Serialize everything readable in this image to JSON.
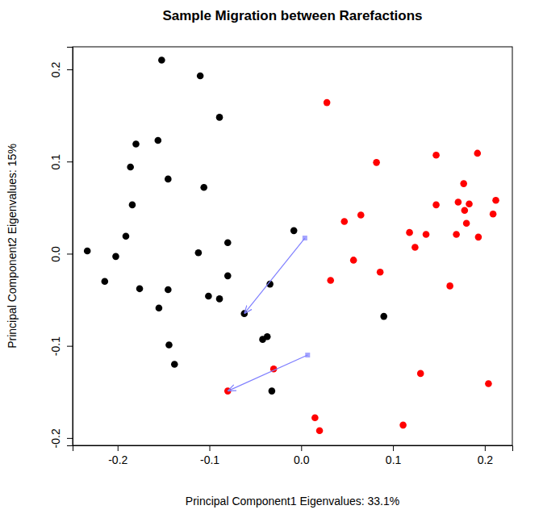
{
  "chart_data": {
    "type": "scatter",
    "title": "Sample Migration between Rarefactions",
    "x_label": "Principal Component1 Eigenvalues: 33.1%",
    "y_label": "Principal Component2 Eigenvalues: 15%",
    "xlim": [
      -0.249,
      0.23
    ],
    "ylim": [
      -0.208,
      0.2245
    ],
    "xticks": [
      -0.2,
      -0.1,
      {
        "value": 0,
        "label": "0.0"
      },
      0.1,
      0.2
    ],
    "yticks": [
      -0.2,
      -0.1,
      {
        "value": 0,
        "label": "0.0"
      },
      0.1,
      0.2
    ],
    "series": [
      {
        "color": "#000000",
        "marker": "circle",
        "x": [
          -0.152,
          -0.11,
          -0.089,
          -0.156,
          -0.18,
          -0.186,
          -0.145,
          -0.106,
          -0.184,
          -0.191,
          -0.233,
          -0.202,
          -0.214,
          -0.176,
          -0.145,
          -0.155,
          -0.112,
          -0.101,
          -0.089,
          -0.08,
          -0.08,
          -0.008,
          -0.034,
          -0.062,
          -0.144,
          -0.138,
          -0.042,
          -0.037,
          -0.032,
          0.09
        ],
        "values": [
          0.21,
          0.193,
          0.148,
          0.123,
          0.119,
          0.094,
          0.081,
          0.072,
          0.053,
          0.019,
          0.003,
          -0.003,
          -0.03,
          -0.038,
          -0.039,
          -0.059,
          0.001,
          -0.046,
          -0.049,
          0.012,
          -0.024,
          0.025,
          -0.033,
          -0.065,
          -0.099,
          -0.12,
          -0.093,
          -0.09,
          -0.149,
          -0.068
        ]
      },
      {
        "color": "#ff0000",
        "marker": "circle",
        "x": [
          0.028,
          0.082,
          0.147,
          0.192,
          0.047,
          0.065,
          0.118,
          0.136,
          0.124,
          0.057,
          0.032,
          0.086,
          0.147,
          0.171,
          0.177,
          0.183,
          0.178,
          0.18,
          0.169,
          0.193,
          0.209,
          0.212,
          0.162,
          0.204,
          0.13,
          0.111,
          0.015,
          0.02,
          -0.03,
          -0.08
        ],
        "values": [
          0.164,
          0.099,
          0.107,
          0.109,
          0.035,
          0.042,
          0.023,
          0.021,
          0.007,
          -0.007,
          -0.029,
          -0.02,
          0.053,
          0.056,
          0.076,
          0.054,
          0.047,
          0.033,
          0.021,
          0.018,
          0.043,
          0.058,
          -0.035,
          -0.141,
          -0.13,
          -0.186,
          -0.178,
          -0.192,
          -0.125,
          -0.149
        ]
      },
      {
        "type": "arrow",
        "color": "#7f7fff",
        "marker": "square",
        "x": [
          0.004,
          -0.062
        ],
        "values": [
          0.017,
          -0.065
        ]
      },
      {
        "type": "arrow",
        "color": "#7f7fff",
        "marker": "square",
        "x": [
          0.007,
          -0.08
        ],
        "values": [
          -0.11,
          -0.149
        ]
      }
    ]
  }
}
